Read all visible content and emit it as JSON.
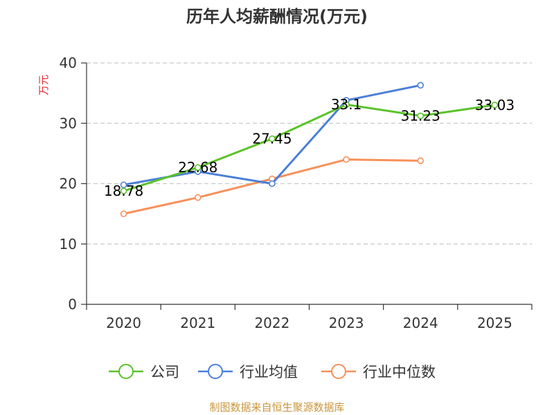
{
  "chart_data": {
    "type": "line",
    "title": "历年人均薪酬情况(万元)",
    "ylabel": "万元",
    "xlabel": "",
    "categories": [
      "2020",
      "2021",
      "2022",
      "2023",
      "2024",
      "2025"
    ],
    "ylim": [
      0,
      40
    ],
    "yticks": [
      0,
      10,
      20,
      30,
      40
    ],
    "grid": true,
    "legend_position": "bottom",
    "series": [
      {
        "name": "公司",
        "color": "#5ac229",
        "values": [
          18.78,
          22.68,
          27.45,
          33.1,
          31.23,
          33.03
        ],
        "labels": [
          "18.78",
          "22.68",
          "27.45",
          "33.1",
          "31.23",
          "33.03"
        ]
      },
      {
        "name": "行业均值",
        "color": "#4b7fd8",
        "values": [
          19.8,
          22.0,
          20.0,
          33.8,
          36.3,
          null
        ],
        "labels": []
      },
      {
        "name": "行业中位数",
        "color": "#f7905a",
        "values": [
          15.0,
          17.7,
          20.8,
          24.0,
          23.8,
          null
        ],
        "labels": []
      }
    ],
    "source": "制图数据来自恒生聚源数据库"
  }
}
